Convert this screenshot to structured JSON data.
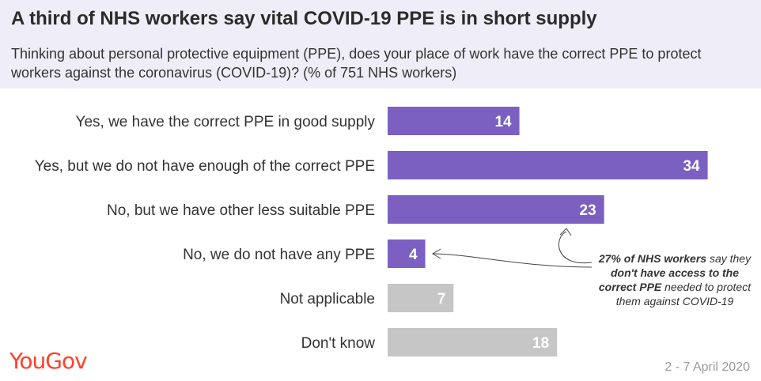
{
  "title": "A third of NHS workers say vital COVID-19 PPE is in short supply",
  "subtitle": "Thinking about personal protective equipment (PPE), does your place of work have the correct PPE to protect workers against the coronavirus (COVID-19)? (% of 751 NHS workers)",
  "brand": "YouGov",
  "date": "2 - 7 April 2020",
  "annotation": {
    "pre": "27% of NHS workers",
    "mid": " say they ",
    "bold": "don't have access to the correct PPE",
    "post": " needed to protect them against COVID-19"
  },
  "colors": {
    "primary": "#7b60c2",
    "muted": "#c6c6c6",
    "header": "#efedf7",
    "brand": "#ff412c"
  },
  "chart_data": {
    "type": "bar",
    "orientation": "horizontal",
    "title": "A third of NHS workers say vital COVID-19 PPE is in short supply",
    "categories": [
      "Yes, we have the correct PPE in good supply",
      "Yes, but we do not have enough of the correct PPE",
      "No, but we have other less suitable PPE",
      "No, we do not have any PPE",
      "Not applicable",
      "Don't know"
    ],
    "values": [
      14,
      34,
      23,
      4,
      7,
      18
    ],
    "bar_colors": [
      "#7b60c2",
      "#7b60c2",
      "#7b60c2",
      "#7b60c2",
      "#c6c6c6",
      "#c6c6c6"
    ],
    "xlim": [
      0,
      34
    ],
    "unit": "%",
    "grid": false,
    "legend": "none"
  }
}
